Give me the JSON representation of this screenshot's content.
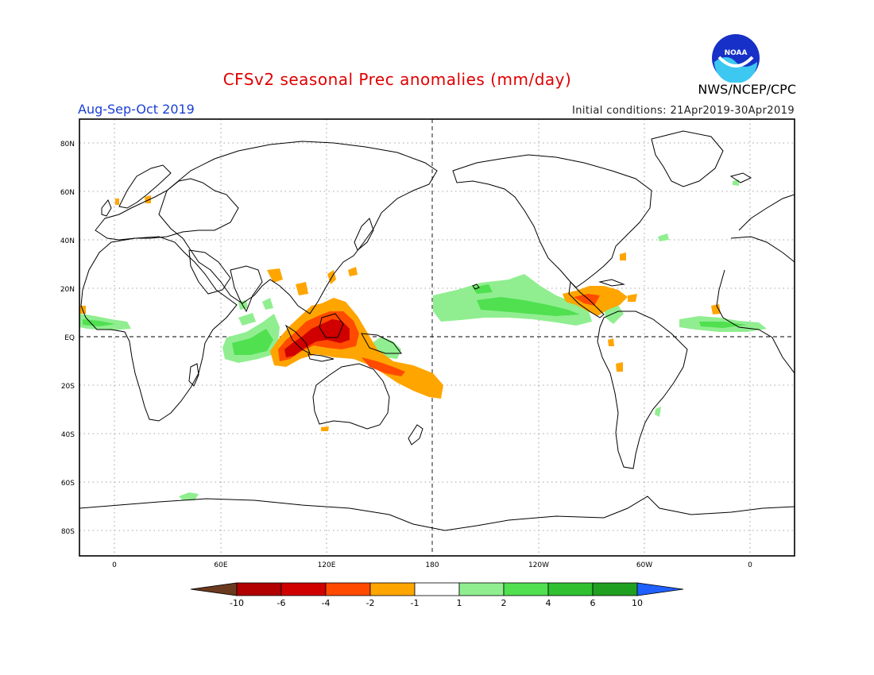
{
  "header": {
    "title": "CFSv2 seasonal Prec anomalies (mm/day)",
    "period": "Aug-Sep-Oct 2019",
    "initial_conditions": "Initial conditions: 21Apr2019-30Apr2019",
    "agency": "NWS/NCEP/CPC",
    "logo_text": "NOAA"
  },
  "axes": {
    "lat_labels": [
      "80N",
      "60N",
      "40N",
      "20N",
      "EQ",
      "20S",
      "40S",
      "60S",
      "80S"
    ],
    "lon_labels": [
      "0",
      "60E",
      "120E",
      "180",
      "120W",
      "60W",
      "0"
    ]
  },
  "legend": {
    "tick_labels": [
      "-10",
      "-6",
      "-4",
      "-2",
      "-1",
      "1",
      "2",
      "4",
      "6",
      "10"
    ],
    "colors": [
      "#6b3a1e",
      "#b00000",
      "#d00000",
      "#ff4a00",
      "#ffa500",
      "#ffffff",
      "#90ee90",
      "#50e050",
      "#30c030",
      "#20a020",
      "#2060ff"
    ]
  },
  "colors": {
    "title": "#e00000",
    "period": "#1a3fd6",
    "wet_light": "#90ee90",
    "wet_mid": "#50e050",
    "wet_dark": "#30c030",
    "dry_light": "#ffa500",
    "dry_mid": "#ff4a00",
    "dry_dark": "#d00000"
  }
}
